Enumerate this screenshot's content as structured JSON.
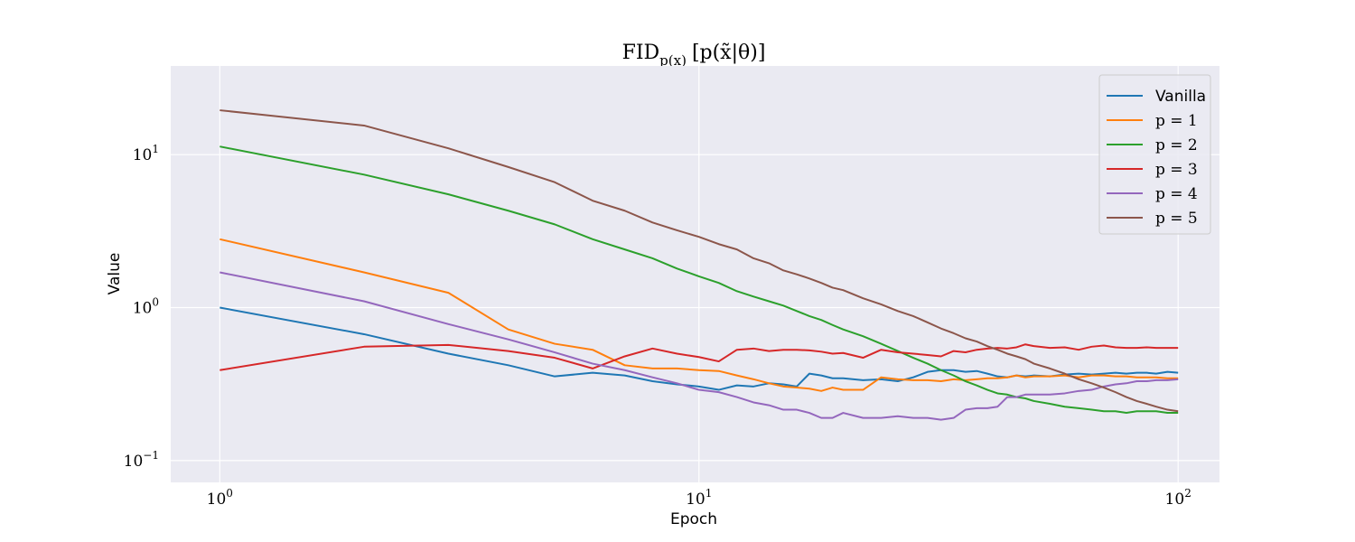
{
  "chart_data": {
    "type": "line",
    "title": "FID_{p(x)} [p(x̃|θ)]",
    "title_parts": {
      "main": "FID",
      "sub": "p(x)",
      "rest": "[p(x̃|θ)]"
    },
    "xlabel": "Epoch",
    "ylabel": "Value",
    "xscale": "log",
    "yscale": "log",
    "xlim": [
      0.79,
      122
    ],
    "ylim": [
      0.072,
      38
    ],
    "grid": true,
    "legend_position": "top-right",
    "x_ticks": [
      {
        "value": 1,
        "base": "10",
        "exp": "0"
      },
      {
        "value": 10,
        "base": "10",
        "exp": "1"
      },
      {
        "value": 100,
        "base": "10",
        "exp": "2"
      }
    ],
    "y_ticks": [
      {
        "value": 0.1,
        "base": "10",
        "exp": "−1"
      },
      {
        "value": 1,
        "base": "10",
        "exp": "0"
      },
      {
        "value": 10,
        "base": "10",
        "exp": "1"
      }
    ],
    "series": [
      {
        "name": "Vanilla",
        "color": "#1f77b4",
        "points": [
          [
            1,
            1.0
          ],
          [
            2,
            0.67
          ],
          [
            3,
            0.5
          ],
          [
            4,
            0.42
          ],
          [
            5,
            0.355
          ],
          [
            6,
            0.375
          ],
          [
            7,
            0.36
          ],
          [
            8,
            0.33
          ],
          [
            9,
            0.315
          ],
          [
            10,
            0.305
          ],
          [
            11,
            0.29
          ],
          [
            12,
            0.31
          ],
          [
            13,
            0.305
          ],
          [
            14,
            0.32
          ],
          [
            15,
            0.315
          ],
          [
            16,
            0.305
          ],
          [
            17,
            0.37
          ],
          [
            18,
            0.36
          ],
          [
            19,
            0.345
          ],
          [
            20,
            0.345
          ],
          [
            22,
            0.335
          ],
          [
            24,
            0.34
          ],
          [
            26,
            0.33
          ],
          [
            28,
            0.35
          ],
          [
            30,
            0.38
          ],
          [
            32,
            0.39
          ],
          [
            34,
            0.39
          ],
          [
            36,
            0.38
          ],
          [
            38,
            0.385
          ],
          [
            40,
            0.37
          ],
          [
            42,
            0.355
          ],
          [
            44,
            0.35
          ],
          [
            46,
            0.36
          ],
          [
            48,
            0.355
          ],
          [
            50,
            0.36
          ],
          [
            54,
            0.355
          ],
          [
            58,
            0.365
          ],
          [
            62,
            0.37
          ],
          [
            66,
            0.365
          ],
          [
            70,
            0.37
          ],
          [
            74,
            0.375
          ],
          [
            78,
            0.37
          ],
          [
            82,
            0.375
          ],
          [
            86,
            0.375
          ],
          [
            90,
            0.37
          ],
          [
            95,
            0.38
          ],
          [
            100,
            0.375
          ]
        ]
      },
      {
        "name": "p = 1",
        "color": "#ff7f0e",
        "points": [
          [
            1,
            2.8
          ],
          [
            2,
            1.7
          ],
          [
            3,
            1.25
          ],
          [
            4,
            0.72
          ],
          [
            5,
            0.58
          ],
          [
            6,
            0.53
          ],
          [
            7,
            0.42
          ],
          [
            8,
            0.4
          ],
          [
            9,
            0.4
          ],
          [
            10,
            0.39
          ],
          [
            11,
            0.385
          ],
          [
            12,
            0.36
          ],
          [
            13,
            0.34
          ],
          [
            14,
            0.32
          ],
          [
            15,
            0.305
          ],
          [
            16,
            0.3
          ],
          [
            17,
            0.295
          ],
          [
            18,
            0.285
          ],
          [
            19,
            0.3
          ],
          [
            20,
            0.29
          ],
          [
            22,
            0.29
          ],
          [
            24,
            0.35
          ],
          [
            26,
            0.34
          ],
          [
            28,
            0.335
          ],
          [
            30,
            0.335
          ],
          [
            32,
            0.33
          ],
          [
            34,
            0.34
          ],
          [
            36,
            0.335
          ],
          [
            38,
            0.34
          ],
          [
            40,
            0.345
          ],
          [
            42,
            0.345
          ],
          [
            44,
            0.35
          ],
          [
            46,
            0.36
          ],
          [
            48,
            0.35
          ],
          [
            50,
            0.355
          ],
          [
            54,
            0.355
          ],
          [
            58,
            0.36
          ],
          [
            62,
            0.35
          ],
          [
            66,
            0.36
          ],
          [
            70,
            0.36
          ],
          [
            74,
            0.355
          ],
          [
            78,
            0.355
          ],
          [
            82,
            0.35
          ],
          [
            86,
            0.35
          ],
          [
            90,
            0.35
          ],
          [
            95,
            0.345
          ],
          [
            100,
            0.345
          ]
        ]
      },
      {
        "name": "p = 2",
        "color": "#2ca02c",
        "points": [
          [
            1,
            11.3
          ],
          [
            2,
            7.4
          ],
          [
            3,
            5.5
          ],
          [
            4,
            4.3
          ],
          [
            5,
            3.5
          ],
          [
            6,
            2.8
          ],
          [
            7,
            2.4
          ],
          [
            8,
            2.1
          ],
          [
            9,
            1.8
          ],
          [
            10,
            1.6
          ],
          [
            11,
            1.45
          ],
          [
            12,
            1.28
          ],
          [
            13,
            1.18
          ],
          [
            14,
            1.1
          ],
          [
            15,
            1.03
          ],
          [
            16,
            0.95
          ],
          [
            17,
            0.88
          ],
          [
            18,
            0.83
          ],
          [
            19,
            0.77
          ],
          [
            20,
            0.72
          ],
          [
            22,
            0.65
          ],
          [
            24,
            0.58
          ],
          [
            26,
            0.52
          ],
          [
            28,
            0.47
          ],
          [
            30,
            0.43
          ],
          [
            32,
            0.39
          ],
          [
            34,
            0.36
          ],
          [
            36,
            0.33
          ],
          [
            38,
            0.31
          ],
          [
            40,
            0.29
          ],
          [
            42,
            0.275
          ],
          [
            44,
            0.27
          ],
          [
            46,
            0.26
          ],
          [
            48,
            0.255
          ],
          [
            50,
            0.245
          ],
          [
            54,
            0.235
          ],
          [
            58,
            0.225
          ],
          [
            62,
            0.22
          ],
          [
            66,
            0.215
          ],
          [
            70,
            0.21
          ],
          [
            74,
            0.21
          ],
          [
            78,
            0.205
          ],
          [
            82,
            0.21
          ],
          [
            86,
            0.21
          ],
          [
            90,
            0.21
          ],
          [
            95,
            0.205
          ],
          [
            100,
            0.205
          ]
        ]
      },
      {
        "name": "p = 3",
        "color": "#d62728",
        "points": [
          [
            1,
            0.39
          ],
          [
            2,
            0.555
          ],
          [
            3,
            0.57
          ],
          [
            4,
            0.52
          ],
          [
            5,
            0.47
          ],
          [
            6,
            0.4
          ],
          [
            7,
            0.48
          ],
          [
            8,
            0.54
          ],
          [
            9,
            0.5
          ],
          [
            10,
            0.475
          ],
          [
            11,
            0.445
          ],
          [
            12,
            0.53
          ],
          [
            13,
            0.54
          ],
          [
            14,
            0.52
          ],
          [
            15,
            0.53
          ],
          [
            16,
            0.53
          ],
          [
            17,
            0.525
          ],
          [
            18,
            0.515
          ],
          [
            19,
            0.5
          ],
          [
            20,
            0.505
          ],
          [
            22,
            0.47
          ],
          [
            24,
            0.53
          ],
          [
            26,
            0.51
          ],
          [
            28,
            0.5
          ],
          [
            30,
            0.49
          ],
          [
            32,
            0.48
          ],
          [
            34,
            0.52
          ],
          [
            36,
            0.51
          ],
          [
            38,
            0.53
          ],
          [
            40,
            0.54
          ],
          [
            42,
            0.545
          ],
          [
            44,
            0.54
          ],
          [
            46,
            0.55
          ],
          [
            48,
            0.575
          ],
          [
            50,
            0.56
          ],
          [
            54,
            0.545
          ],
          [
            58,
            0.55
          ],
          [
            62,
            0.53
          ],
          [
            66,
            0.555
          ],
          [
            70,
            0.565
          ],
          [
            74,
            0.55
          ],
          [
            78,
            0.545
          ],
          [
            82,
            0.545
          ],
          [
            86,
            0.55
          ],
          [
            90,
            0.545
          ],
          [
            95,
            0.545
          ],
          [
            100,
            0.545
          ]
        ]
      },
      {
        "name": "p = 4",
        "color": "#9467bd",
        "points": [
          [
            1,
            1.7
          ],
          [
            2,
            1.1
          ],
          [
            3,
            0.78
          ],
          [
            4,
            0.62
          ],
          [
            5,
            0.51
          ],
          [
            6,
            0.43
          ],
          [
            7,
            0.39
          ],
          [
            8,
            0.35
          ],
          [
            9,
            0.32
          ],
          [
            10,
            0.29
          ],
          [
            11,
            0.28
          ],
          [
            12,
            0.26
          ],
          [
            13,
            0.24
          ],
          [
            14,
            0.23
          ],
          [
            15,
            0.215
          ],
          [
            16,
            0.215
          ],
          [
            17,
            0.205
          ],
          [
            18,
            0.19
          ],
          [
            19,
            0.19
          ],
          [
            20,
            0.205
          ],
          [
            22,
            0.19
          ],
          [
            24,
            0.19
          ],
          [
            26,
            0.195
          ],
          [
            28,
            0.19
          ],
          [
            30,
            0.19
          ],
          [
            32,
            0.185
          ],
          [
            34,
            0.19
          ],
          [
            36,
            0.215
          ],
          [
            38,
            0.22
          ],
          [
            40,
            0.22
          ],
          [
            42,
            0.225
          ],
          [
            44,
            0.26
          ],
          [
            46,
            0.26
          ],
          [
            48,
            0.27
          ],
          [
            50,
            0.27
          ],
          [
            54,
            0.27
          ],
          [
            58,
            0.275
          ],
          [
            62,
            0.285
          ],
          [
            66,
            0.29
          ],
          [
            70,
            0.305
          ],
          [
            74,
            0.315
          ],
          [
            78,
            0.32
          ],
          [
            82,
            0.33
          ],
          [
            86,
            0.33
          ],
          [
            90,
            0.335
          ],
          [
            95,
            0.335
          ],
          [
            100,
            0.34
          ]
        ]
      },
      {
        "name": "p = 5",
        "color": "#8c564b",
        "points": [
          [
            1,
            19.5
          ],
          [
            2,
            15.5
          ],
          [
            3,
            11.0
          ],
          [
            4,
            8.3
          ],
          [
            5,
            6.6
          ],
          [
            6,
            5.0
          ],
          [
            7,
            4.3
          ],
          [
            8,
            3.6
          ],
          [
            9,
            3.2
          ],
          [
            10,
            2.9
          ],
          [
            11,
            2.6
          ],
          [
            12,
            2.4
          ],
          [
            13,
            2.1
          ],
          [
            14,
            1.95
          ],
          [
            15,
            1.75
          ],
          [
            16,
            1.65
          ],
          [
            17,
            1.55
          ],
          [
            18,
            1.45
          ],
          [
            19,
            1.35
          ],
          [
            20,
            1.3
          ],
          [
            22,
            1.15
          ],
          [
            24,
            1.05
          ],
          [
            26,
            0.95
          ],
          [
            28,
            0.88
          ],
          [
            30,
            0.8
          ],
          [
            32,
            0.73
          ],
          [
            34,
            0.68
          ],
          [
            36,
            0.63
          ],
          [
            38,
            0.6
          ],
          [
            40,
            0.56
          ],
          [
            42,
            0.53
          ],
          [
            44,
            0.5
          ],
          [
            46,
            0.48
          ],
          [
            48,
            0.46
          ],
          [
            50,
            0.43
          ],
          [
            54,
            0.4
          ],
          [
            58,
            0.37
          ],
          [
            62,
            0.34
          ],
          [
            66,
            0.32
          ],
          [
            70,
            0.3
          ],
          [
            74,
            0.28
          ],
          [
            78,
            0.26
          ],
          [
            82,
            0.245
          ],
          [
            86,
            0.235
          ],
          [
            90,
            0.225
          ],
          [
            95,
            0.215
          ],
          [
            100,
            0.21
          ]
        ]
      }
    ]
  }
}
